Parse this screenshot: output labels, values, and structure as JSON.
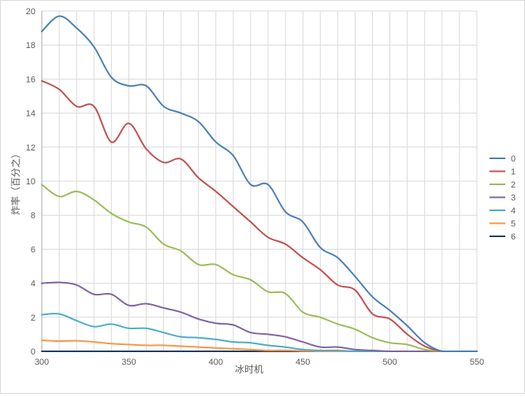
{
  "chart_data": {
    "type": "line",
    "title": "",
    "xlabel": "冰时机",
    "ylabel": "炸率（百分之）",
    "xlim": [
      300,
      550
    ],
    "ylim": [
      0,
      20
    ],
    "x_ticks": [
      300,
      350,
      400,
      450,
      500,
      550
    ],
    "y_ticks": [
      0,
      2,
      4,
      6,
      8,
      10,
      12,
      14,
      16,
      18,
      20
    ],
    "grid": true,
    "legend_position": "right",
    "x": [
      300,
      310,
      320,
      330,
      340,
      350,
      360,
      370,
      380,
      390,
      400,
      410,
      420,
      430,
      440,
      450,
      460,
      470,
      480,
      490,
      500,
      510,
      520,
      530,
      540,
      550
    ],
    "series": [
      {
        "name": "0",
        "color": "#4a7fb5",
        "values": [
          18.8,
          19.7,
          19.0,
          17.9,
          16.1,
          15.6,
          15.6,
          14.4,
          14.0,
          13.5,
          12.3,
          11.5,
          9.8,
          9.8,
          8.2,
          7.6,
          6.1,
          5.5,
          4.4,
          3.2,
          2.4,
          1.5,
          0.5,
          0.0,
          0.0,
          0.0
        ]
      },
      {
        "name": "1",
        "color": "#c0504d",
        "values": [
          15.9,
          15.4,
          14.4,
          14.4,
          12.3,
          13.4,
          11.9,
          11.1,
          11.3,
          10.2,
          9.4,
          8.5,
          7.6,
          6.7,
          6.3,
          5.5,
          4.8,
          3.9,
          3.6,
          2.2,
          1.9,
          1.0,
          0.3,
          0.0,
          0.0,
          0.0
        ]
      },
      {
        "name": "2",
        "color": "#9bbb59",
        "values": [
          9.8,
          9.1,
          9.4,
          8.9,
          8.1,
          7.6,
          7.3,
          6.3,
          5.9,
          5.1,
          5.1,
          4.5,
          4.2,
          3.5,
          3.4,
          2.3,
          2.0,
          1.6,
          1.3,
          0.8,
          0.5,
          0.4,
          0.1,
          0.0,
          0.0,
          0.0
        ]
      },
      {
        "name": "3",
        "color": "#8064a2",
        "values": [
          4.0,
          4.05,
          3.9,
          3.35,
          3.35,
          2.7,
          2.8,
          2.55,
          2.3,
          1.9,
          1.65,
          1.55,
          1.1,
          1.0,
          0.85,
          0.55,
          0.25,
          0.25,
          0.1,
          0.05,
          0.0,
          0.0,
          0.0,
          0.0,
          0.0,
          0.0
        ]
      },
      {
        "name": "4",
        "color": "#4bacc6",
        "values": [
          2.15,
          2.2,
          1.8,
          1.45,
          1.6,
          1.35,
          1.35,
          1.1,
          0.85,
          0.8,
          0.7,
          0.55,
          0.5,
          0.35,
          0.25,
          0.1,
          0.05,
          0.05,
          0.0,
          0.0,
          0.0,
          0.0,
          0.0,
          0.0,
          0.0,
          0.0
        ]
      },
      {
        "name": "5",
        "color": "#f79646",
        "values": [
          0.65,
          0.6,
          0.62,
          0.55,
          0.45,
          0.4,
          0.35,
          0.35,
          0.3,
          0.25,
          0.2,
          0.15,
          0.1,
          0.05,
          0.05,
          0.02,
          0.0,
          0.0,
          0.0,
          0.0,
          0.0,
          0.0,
          0.0,
          0.0,
          0.0,
          0.0
        ]
      },
      {
        "name": "6",
        "color": "#1f3d63",
        "values": [
          0.0,
          0.0,
          0.0,
          0.0,
          0.0,
          0.0,
          0.0,
          0.0,
          0.0,
          0.0,
          0.0,
          0.0,
          0.0,
          0.0,
          0.0,
          0.0,
          0.0,
          0.0,
          0.0,
          0.0,
          0.0,
          0.0,
          0.0,
          0.0,
          0.0,
          0.0
        ]
      }
    ]
  }
}
